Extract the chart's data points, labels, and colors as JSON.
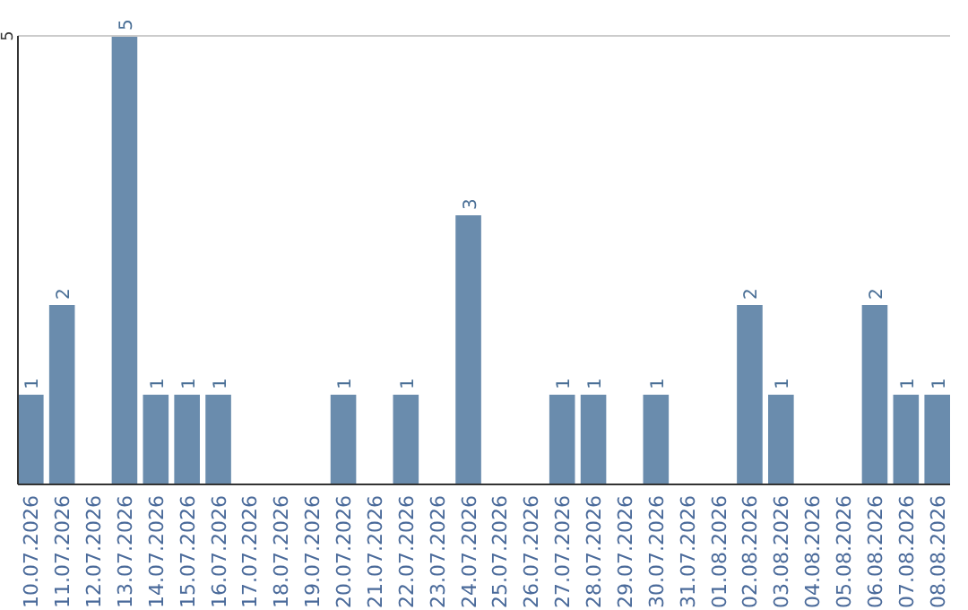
{
  "chart_data": {
    "type": "bar",
    "categories": [
      "10.07.2026",
      "11.07.2026",
      "12.07.2026",
      "13.07.2026",
      "14.07.2026",
      "15.07.2026",
      "16.07.2026",
      "17.07.2026",
      "18.07.2026",
      "19.07.2026",
      "20.07.2026",
      "21.07.2026",
      "22.07.2026",
      "23.07.2026",
      "24.07.2026",
      "25.07.2026",
      "26.07.2026",
      "27.07.2026",
      "28.07.2026",
      "29.07.2026",
      "30.07.2026",
      "31.07.2026",
      "01.08.2026",
      "02.08.2026",
      "03.08.2026",
      "04.08.2026",
      "05.08.2026",
      "06.08.2026",
      "07.08.2026",
      "08.08.2026"
    ],
    "values": [
      1,
      2,
      0,
      5,
      1,
      1,
      1,
      0,
      0,
      0,
      1,
      0,
      1,
      0,
      3,
      0,
      0,
      1,
      1,
      0,
      1,
      0,
      0,
      2,
      1,
      0,
      0,
      2,
      1,
      1
    ],
    "value_labels": [
      "1",
      "2",
      null,
      "5",
      "1",
      "1",
      "1",
      null,
      null,
      null,
      "1",
      null,
      "1",
      null,
      "3",
      null,
      null,
      "1",
      "1",
      null,
      "1",
      null,
      null,
      "2",
      "1",
      null,
      null,
      "2",
      "1",
      "1"
    ],
    "color": "#6a8cad",
    "ylim": [
      0,
      5
    ],
    "yticks": [
      5
    ],
    "ref_lines": [
      {
        "axis": "y",
        "value": 5,
        "color": "#cccccc"
      }
    ]
  }
}
